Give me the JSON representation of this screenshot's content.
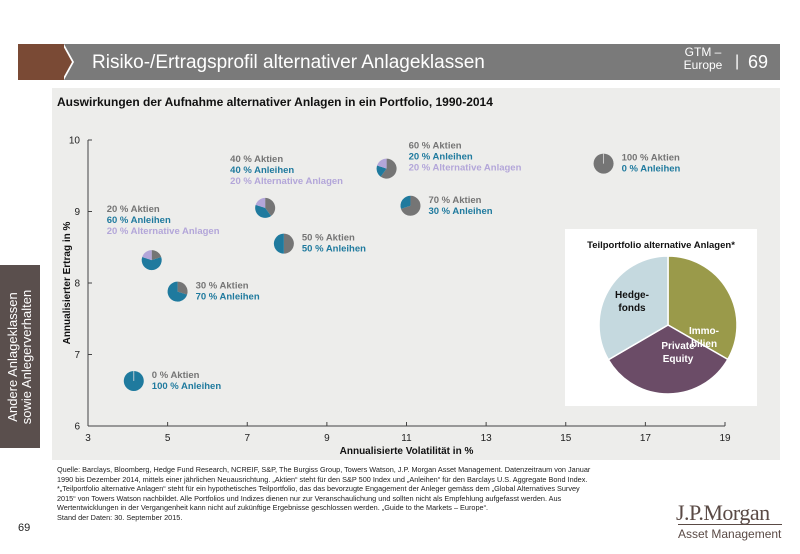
{
  "header": {
    "title": "Risiko-/Ertragsprofil alternativer Anlageklassen",
    "gtm_line1": "GTM –",
    "gtm_line2": "Europe",
    "separator": "|",
    "page_number": "69"
  },
  "subtitle": "Auswirkungen der Aufnahme alternativer Anlagen in ein Portfolio, 1990-2014",
  "side_tab": {
    "line1": "Andere Anlageklassen",
    "line2": "sowie Anlegerverhalten"
  },
  "colors": {
    "aktien": "#757575",
    "anleihen": "#1f7a9e",
    "alternative": "#b3a6d9",
    "header_bar": "#7a7a7a",
    "header_accent": "#7a4a35",
    "immobilien": "#9a9a4a",
    "private_equity": "#6b4c67",
    "hedgefonds": "#c5d9df"
  },
  "chart_data": [
    {
      "type": "scatter",
      "title": "Auswirkungen der Aufnahme alternativer Anlagen in ein Portfolio, 1990-2014",
      "xlabel": "Annualisierte Volatilität in %",
      "ylabel": "Annualisierter Ertrag in %",
      "xlim": [
        3,
        19
      ],
      "ylim": [
        6,
        10
      ],
      "xticks": [
        3,
        5,
        7,
        9,
        11,
        13,
        15,
        17,
        19
      ],
      "yticks": [
        6,
        7,
        8,
        9,
        10
      ],
      "grid": false,
      "marker": "pie",
      "points": [
        {
          "x": 4.15,
          "y": 6.63,
          "aktien": 0,
          "anleihen": 100,
          "alternative": 0,
          "labels": [
            "0 % Aktien",
            "100 % Anleihen"
          ],
          "label_pos": "right"
        },
        {
          "x": 4.6,
          "y": 8.32,
          "aktien": 20,
          "anleihen": 60,
          "alternative": 20,
          "labels": [
            "20 % Aktien",
            "60 % Anleihen",
            "20 % Alternative Anlagen"
          ],
          "label_pos": "above-right"
        },
        {
          "x": 5.25,
          "y": 7.88,
          "aktien": 30,
          "anleihen": 70,
          "alternative": 0,
          "labels": [
            "30 % Aktien",
            "70 % Anleihen"
          ],
          "label_pos": "right"
        },
        {
          "x": 7.45,
          "y": 9.05,
          "aktien": 40,
          "anleihen": 40,
          "alternative": 20,
          "labels": [
            "40 % Aktien",
            "40 % Anleihen",
            "20 % Alternative Anlagen"
          ],
          "label_pos": "above"
        },
        {
          "x": 7.92,
          "y": 8.55,
          "aktien": 50,
          "anleihen": 50,
          "alternative": 0,
          "labels": [
            "50 % Aktien",
            "50 % Anleihen"
          ],
          "label_pos": "right"
        },
        {
          "x": 10.5,
          "y": 9.6,
          "aktien": 60,
          "anleihen": 20,
          "alternative": 20,
          "labels": [
            "60 % Aktien",
            "20 % Anleihen",
            "20 % Alternative Anlagen"
          ],
          "label_pos": "right"
        },
        {
          "x": 11.1,
          "y": 9.08,
          "aktien": 70,
          "anleihen": 30,
          "alternative": 0,
          "labels": [
            "70 % Aktien",
            "30 % Anleihen"
          ],
          "label_pos": "right"
        },
        {
          "x": 15.95,
          "y": 9.67,
          "aktien": 100,
          "anleihen": 0,
          "alternative": 0,
          "labels": [
            "100 % Aktien",
            "0 % Anleihen"
          ],
          "label_pos": "right"
        }
      ]
    },
    {
      "type": "pie",
      "title": "Teilportfolio alternative Anlagen*",
      "slices": [
        {
          "label": "Immo-\nbilien",
          "value": 33.3,
          "color": "#9a9a4a"
        },
        {
          "label": "Private\nEquity",
          "value": 33.3,
          "color": "#6b4c67"
        },
        {
          "label": "Hedge-\nfonds",
          "value": 33.4,
          "color": "#c5d9df"
        }
      ]
    }
  ],
  "footer": {
    "lines": [
      "Quelle: Barclays, Bloomberg, Hedge Fund Research, NCREIF, S&P, The Burgiss Group, Towers Watson, J.P. Morgan Asset Management. Datenzeitraum von Januar",
      "1990 bis Dezember 2014, mittels einer jährlichen Neuausrichtung. „Aktien“ steht für den S&P 500 Index und „Anleihen“ für den Barclays U.S. Aggregate Bond Index.",
      "*„Teilportfolio alternative Anlagen“ steht für ein hypothetisches Teilportfolio, das das bevorzugte Engagement der Anleger gemäss dem „Global Alternatives Survey",
      "2015“ von Towers Watson nachbildet. Alle Portfolios und Indizes dienen nur zur Veranschaulichung und sollten nicht als Empfehlung aufgefasst werden. Aus",
      "Wertentwicklungen in der Vergangenheit kann nicht auf zukünftige Ergebnisse geschlossen werden. „Guide to the Markets – Europe“.",
      "Stand der Daten: 30. September 2015."
    ],
    "page_number": "69"
  },
  "logo": {
    "name": "J.P.Morgan",
    "sub": "Asset Management"
  }
}
